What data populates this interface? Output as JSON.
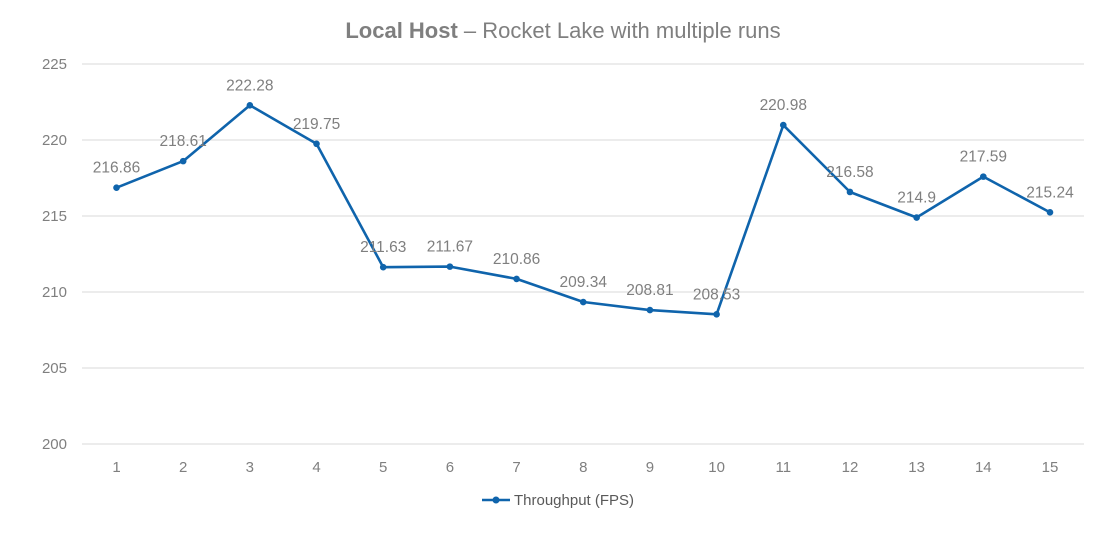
{
  "chart_data": {
    "type": "line",
    "title_bold": "Local Host",
    "title_rest": " – Rocket Lake with multiple runs",
    "categories": [
      "1",
      "2",
      "3",
      "4",
      "5",
      "6",
      "7",
      "8",
      "9",
      "10",
      "11",
      "12",
      "13",
      "14",
      "15"
    ],
    "series": [
      {
        "name": "Throughput (FPS)",
        "values": [
          216.86,
          218.61,
          222.28,
          219.75,
          211.63,
          211.67,
          210.86,
          209.34,
          208.81,
          208.53,
          220.98,
          216.58,
          214.9,
          217.59,
          215.24
        ],
        "labels": [
          "216.86",
          "218.61",
          "222.28",
          "219.75",
          "211.63",
          "211.67",
          "210.86",
          "209.34",
          "208.81",
          "208.53",
          "220.98",
          "216.58",
          "214.9",
          "217.59",
          "215.24"
        ],
        "color": "#0f64ac"
      }
    ],
    "ylim": [
      200,
      225
    ],
    "yticks": [
      "200",
      "205",
      "210",
      "215",
      "220",
      "225"
    ],
    "grid": true,
    "legend_position": "bottom",
    "gridline_color": "#d9d9d9"
  }
}
